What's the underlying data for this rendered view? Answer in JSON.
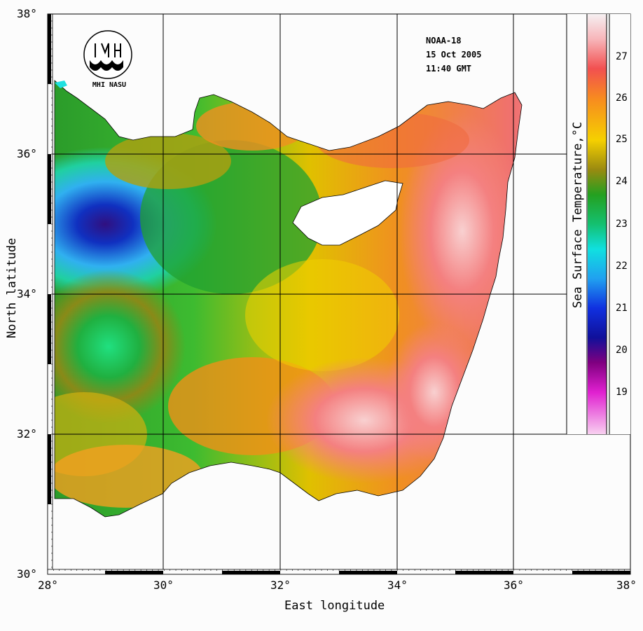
{
  "info": {
    "satellite": "NOAA-18",
    "date": "15 Oct 2005",
    "time": "11:40 GMT"
  },
  "logo": {
    "text": "MHI NASU"
  },
  "axes": {
    "x_title": "East longitude",
    "y_title": "North latitude",
    "x_ticks": [
      "28°",
      "30°",
      "32°",
      "34°",
      "36°",
      "38°"
    ],
    "y_ticks": [
      "38°",
      "36°",
      "34°",
      "32°",
      "30°"
    ]
  },
  "colorbar": {
    "title": "Sea Surface Temperature,°C",
    "labels": [
      "27",
      "26",
      "25",
      "24",
      "23",
      "22",
      "21",
      "20",
      "19"
    ]
  },
  "colors": {
    "land": "#ffffff",
    "background": "#fcfcfc"
  }
}
